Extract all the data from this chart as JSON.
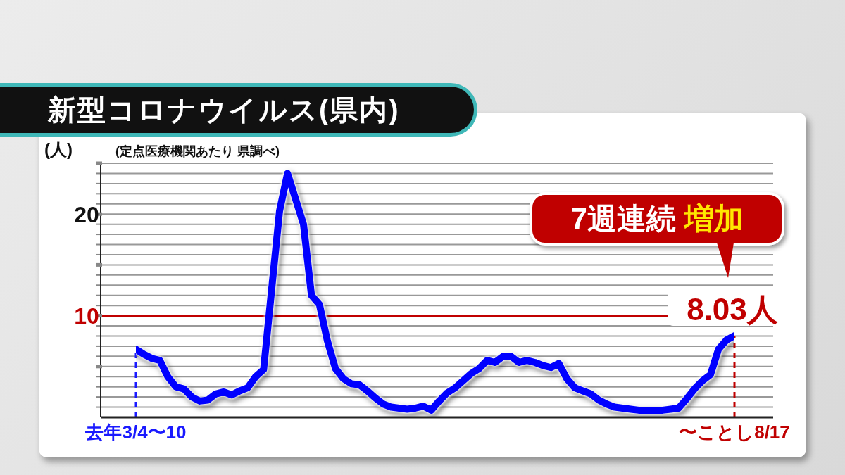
{
  "chart_data": {
    "type": "line",
    "title": "新型コロナウイルス(県内)",
    "ylabel": "(人)",
    "categories": [
      "去年3/4〜10",
      null,
      null,
      null,
      null,
      null,
      null,
      null,
      null,
      null,
      null,
      null,
      null,
      null,
      null,
      null,
      null,
      null,
      null,
      null,
      null,
      null,
      null,
      null,
      null,
      null,
      null,
      null,
      null,
      null,
      null,
      null,
      null,
      null,
      null,
      null,
      null,
      null,
      null,
      null,
      null,
      null,
      null,
      null,
      null,
      null,
      null,
      null,
      null,
      null,
      null,
      null,
      null,
      null,
      null,
      null,
      null,
      null,
      null,
      null,
      null,
      null,
      null,
      null,
      null,
      null,
      null,
      null,
      null,
      null,
      null,
      null,
      null,
      null,
      null,
      "〜ことし8/17"
    ],
    "series": [
      {
        "color": "#0000ff",
        "values": [
          6.7,
          6.2,
          5.8,
          5.6,
          4.0,
          3.0,
          2.8,
          2.0,
          1.6,
          1.7,
          2.3,
          2.5,
          2.2,
          2.6,
          2.9,
          4.0,
          4.7,
          12.5,
          20.3,
          24.0,
          21.5,
          19.0,
          12.0,
          11.1,
          7.5,
          4.8,
          3.8,
          3.3,
          3.2,
          2.6,
          1.9,
          1.3,
          1.0,
          0.9,
          0.8,
          0.9,
          1.1,
          0.7,
          1.6,
          2.4,
          2.9,
          3.6,
          4.3,
          4.8,
          5.6,
          5.4,
          6.0,
          6.0,
          5.4,
          5.6,
          5.4,
          5.1,
          4.9,
          5.3,
          3.8,
          2.9,
          2.6,
          2.3,
          1.7,
          1.3,
          1.0,
          0.9,
          0.8,
          0.7,
          0.7,
          0.7,
          0.7,
          0.8,
          0.9,
          1.8,
          2.8,
          3.6,
          4.2,
          6.7,
          7.6,
          8.03
        ]
      }
    ],
    "ylim": [
      0,
      25
    ],
    "yticks": [
      {
        "value": 1,
        "label": null
      },
      {
        "value": 2,
        "label": null
      },
      {
        "value": 3,
        "label": null
      },
      {
        "value": 4,
        "label": null
      },
      {
        "value": 5,
        "label": null
      },
      {
        "value": 6,
        "label": null
      },
      {
        "value": 7,
        "label": null
      },
      {
        "value": 8,
        "label": null
      },
      {
        "value": 9,
        "label": null
      },
      10,
      {
        "value": 11,
        "label": null
      },
      {
        "value": 12,
        "label": null
      },
      {
        "value": 13,
        "label": null
      },
      {
        "value": 14,
        "label": null
      },
      {
        "value": 15,
        "label": null
      },
      {
        "value": 16,
        "label": null
      },
      {
        "value": 17,
        "label": null
      },
      {
        "value": 18,
        "label": null
      },
      {
        "value": 19,
        "label": null
      },
      20,
      {
        "value": 21,
        "label": null
      },
      {
        "value": 22,
        "label": null
      },
      {
        "value": 23,
        "label": null
      },
      {
        "value": 24,
        "label": null
      },
      {
        "value": 25,
        "label": null
      }
    ],
    "grid": "y",
    "marker": "none",
    "line_style": "solid",
    "legend": false,
    "ref_lines": [
      {
        "axis": "y",
        "value": 10,
        "color": "#c00000",
        "line_style": "solid"
      },
      {
        "axis": "x",
        "value": "去年3/4〜10",
        "color": "#1a1aff",
        "line_style": "dashed"
      },
      {
        "axis": "x",
        "value": "〜ことし8/17",
        "color": "#c00000",
        "line_style": "dashed"
      }
    ],
    "annotations": [
      "(定点医療機関あたり 県調べ)",
      "7週連続 増加",
      {
        "text": "8.03人",
        "x": "〜ことし8/17",
        "y": 8.03
      }
    ]
  }
}
